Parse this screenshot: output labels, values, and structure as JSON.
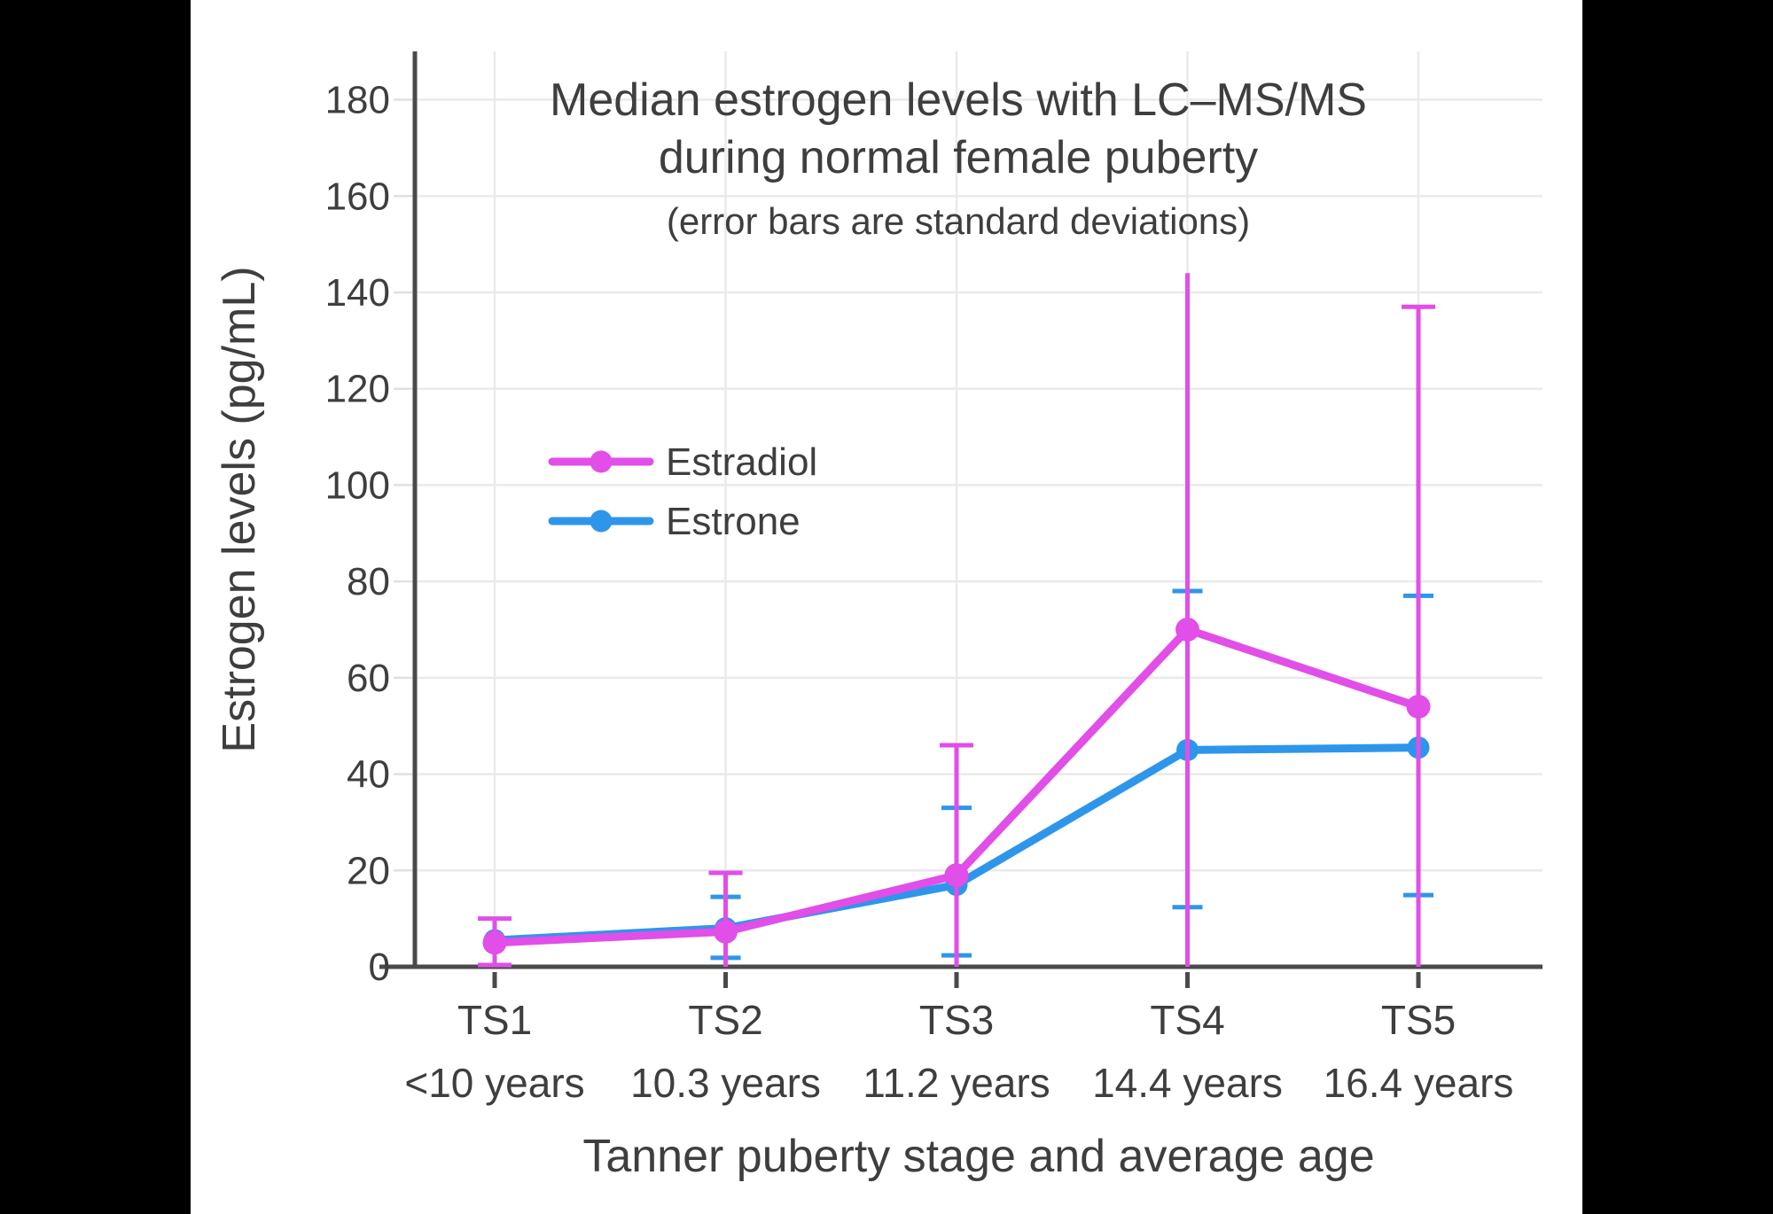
{
  "window": {
    "background_color": "#000000",
    "canvas_color": "#FFFFFF"
  },
  "chart_data": {
    "type": "line",
    "title_lines": [
      "Median estrogen levels with LC–MS/MS",
      "during normal female puberty"
    ],
    "subtitle": "(error bars are standard deviations)",
    "xlabel": "Tanner puberty stage and average age",
    "ylabel": "Estrogen levels (pg/mL)",
    "ylim": [
      0,
      190
    ],
    "yticks": [
      0,
      20,
      40,
      60,
      80,
      100,
      120,
      140,
      160,
      180
    ],
    "categories": [
      "TS1",
      "TS2",
      "TS3",
      "TS4",
      "TS5"
    ],
    "category_ages": [
      "<10 years",
      "10.3 years",
      "11.2 years",
      "14.4 years",
      "16.4 years"
    ],
    "grid": true,
    "legend_position": "inside-upper-left",
    "error_bar_note": "error bars are standard deviations; lower Estradiol bars clipped at 0",
    "series": [
      {
        "name": "Estradiol",
        "color": "#E14EE8",
        "values": [
          5,
          7.3,
          19,
          70,
          54
        ],
        "error_top": [
          10,
          19.5,
          46,
          144,
          137
        ],
        "error_bottom": [
          0,
          0,
          0,
          0,
          0
        ],
        "cap_top": [
          true,
          true,
          true,
          false,
          true
        ],
        "cap_bottom": [
          true,
          false,
          false,
          false,
          false
        ],
        "z_order": "top"
      },
      {
        "name": "Estrone",
        "color": "#2E96EA",
        "values": [
          5.5,
          8,
          17,
          45,
          45.5
        ],
        "error_top": [
          null,
          14.5,
          33,
          78,
          77
        ],
        "error_bottom": [
          null,
          1.5,
          2,
          12,
          14.5
        ],
        "cap_top": [
          false,
          true,
          true,
          true,
          true
        ],
        "cap_bottom": [
          false,
          true,
          true,
          true,
          true
        ],
        "z_order": "bottom"
      }
    ],
    "colors": {
      "axis": "#4A4A4A",
      "grid": "#EAEAEA",
      "tick": "#E0E0E0",
      "text": "#3E3E3E"
    }
  }
}
